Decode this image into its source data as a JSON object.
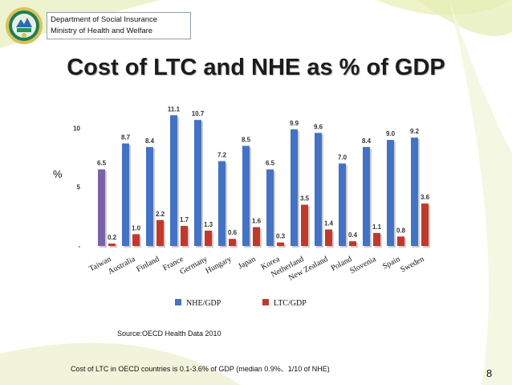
{
  "header": {
    "dept_line1": "Department of Social Insurance",
    "dept_line2": "Ministry of Health and Welfare"
  },
  "title": "Cost of LTC and NHE as % of GDP",
  "y_unit_label": "%",
  "source": "Source:OECD Health Data 2010",
  "note": "Cost of LTC in OECD countries is 0.1-3.6% of GDP (median 0.9%、1/10 of NHE)",
  "page_number": "8",
  "colors": {
    "nhe": "#4472c4",
    "nhe_highlight": "#7b62a8",
    "ltc": "#c0392b",
    "bar_shadow": "#9a9a9a"
  },
  "chart_data": {
    "type": "bar",
    "categories": [
      "Taiwan",
      "Australia",
      "Finland",
      "France",
      "Germany",
      "Hungary",
      "Japan",
      "Korea",
      "Netherland",
      "New Zealand",
      "Poland",
      "Slovenia",
      "Spain",
      "Sweden"
    ],
    "series": [
      {
        "name": "NHE/GDP",
        "values": [
          6.5,
          8.7,
          8.4,
          11.1,
          10.7,
          7.2,
          8.5,
          6.5,
          9.9,
          9.6,
          7.0,
          8.4,
          9.0,
          9.2
        ],
        "labels": [
          "6.5",
          "8.7",
          "8.4",
          "11.1",
          "10.7",
          "7.2",
          "8.5",
          "6.5",
          "9.9",
          "9.6",
          "7.0",
          "8.4",
          "9.0",
          "9.2"
        ]
      },
      {
        "name": "LTC/GDP",
        "values": [
          0.2,
          1.0,
          2.2,
          1.7,
          1.3,
          0.6,
          1.6,
          0.3,
          3.5,
          1.4,
          0.4,
          1.1,
          0.8,
          3.6
        ],
        "labels": [
          "0.2",
          "1.0",
          "2.2",
          "1.7",
          "1.3",
          "0.6",
          "1.6",
          "0.3",
          "3.5",
          "1.4",
          "0.4",
          "1.1",
          "0.8",
          "3.6"
        ]
      }
    ],
    "y_ticks": [
      "-",
      "5",
      "10"
    ],
    "y_tick_values": [
      0,
      5,
      10
    ],
    "ylim": [
      0,
      11.6
    ],
    "grid": false,
    "legend": "bottom"
  }
}
